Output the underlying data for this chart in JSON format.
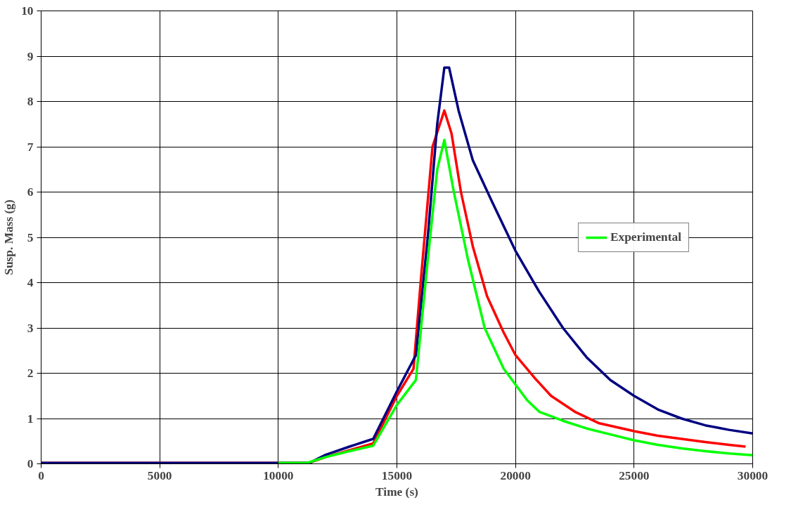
{
  "chart_data": {
    "type": "line",
    "xlabel": "Time (s)",
    "ylabel": "Susp. Mass (g)",
    "xlim": [
      0,
      30000
    ],
    "xticks": [
      0,
      5000,
      10000,
      15000,
      20000,
      25000,
      30000
    ],
    "ylim": [
      0,
      10
    ],
    "yticks": [
      0,
      1,
      2,
      3,
      4,
      5,
      6,
      7,
      8,
      9,
      10
    ],
    "grid": true,
    "legend": "right",
    "marker": "none",
    "line_style": "solid",
    "series": [
      {
        "color": "#ff0000",
        "x": [
          0,
          11300,
          12000,
          13000,
          14000,
          15000,
          15700,
          16000,
          16500,
          17000,
          17300,
          17700,
          18200,
          18800,
          19500,
          20000,
          20800,
          21500,
          22500,
          23500,
          25000,
          26000,
          27000,
          28000,
          29000,
          29700
        ],
        "values": [
          0.02,
          0.02,
          0.15,
          0.3,
          0.45,
          1.5,
          2.1,
          4.0,
          7.0,
          7.8,
          7.3,
          6.0,
          4.8,
          3.7,
          2.9,
          2.4,
          1.9,
          1.5,
          1.15,
          0.9,
          0.72,
          0.62,
          0.55,
          0.48,
          0.42,
          0.38
        ]
      },
      {
        "color": "#000080",
        "x": [
          0,
          11300,
          12000,
          13000,
          14000,
          15000,
          15800,
          16300,
          16700,
          17000,
          17200,
          17600,
          18200,
          19000,
          20000,
          21000,
          22000,
          23000,
          24000,
          25000,
          26000,
          27000,
          28000,
          29000,
          30000
        ],
        "values": [
          0.02,
          0.02,
          0.2,
          0.38,
          0.55,
          1.6,
          2.4,
          5.0,
          7.5,
          8.75,
          8.75,
          7.8,
          6.7,
          5.8,
          4.7,
          3.8,
          3.0,
          2.35,
          1.85,
          1.5,
          1.2,
          1.0,
          0.85,
          0.75,
          0.67
        ]
      },
      {
        "name": "Experimental",
        "color": "#00ff00",
        "x": [
          10000,
          11200,
          12000,
          13000,
          14000,
          15000,
          15800,
          16300,
          16700,
          17000,
          17400,
          18000,
          18700,
          19500,
          20500,
          21000,
          22000,
          23000,
          24000,
          25000,
          26000,
          27000,
          28000,
          29000,
          30000
        ],
        "values": [
          0.02,
          0.02,
          0.15,
          0.28,
          0.4,
          1.3,
          1.85,
          4.5,
          6.5,
          7.15,
          6.0,
          4.5,
          3.0,
          2.1,
          1.4,
          1.15,
          0.95,
          0.78,
          0.65,
          0.52,
          0.42,
          0.34,
          0.28,
          0.23,
          0.19
        ]
      }
    ]
  }
}
